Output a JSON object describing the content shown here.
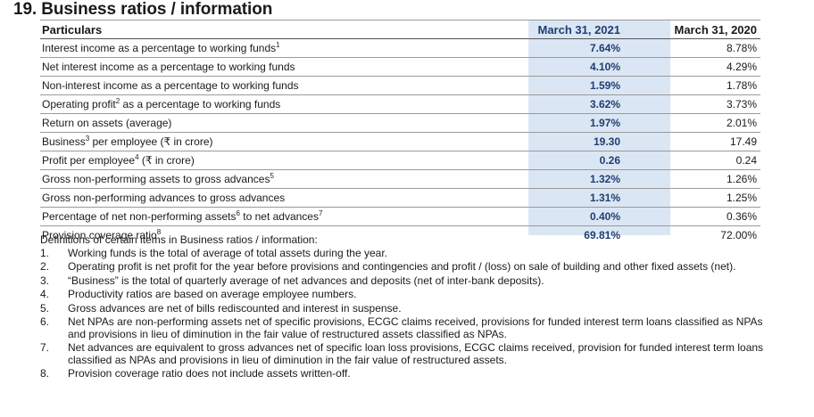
{
  "section_title": "19. Business ratios / information",
  "table": {
    "headers": {
      "particulars": "Particulars",
      "col1": "March 31, 2021",
      "col2": "March 31, 2020"
    },
    "rows": [
      {
        "label": "Interest income as a percentage to working funds",
        "sup": "1",
        "suffix": "",
        "v2021": "7.64%",
        "v2020": "8.78%"
      },
      {
        "label": "Net interest income as a percentage to working funds",
        "sup": "",
        "suffix": "",
        "v2021": "4.10%",
        "v2020": "4.29%"
      },
      {
        "label": "Non-interest income as a percentage to working funds",
        "sup": "",
        "suffix": "",
        "v2021": "1.59%",
        "v2020": "1.78%"
      },
      {
        "label": "Operating profit",
        "sup": "2",
        "suffix": " as a percentage to working funds",
        "v2021": "3.62%",
        "v2020": "3.73%"
      },
      {
        "label": "Return on assets (average)",
        "sup": "",
        "suffix": "",
        "v2021": "1.97%",
        "v2020": "2.01%"
      },
      {
        "label": "Business",
        "sup": "3",
        "suffix": " per employee (₹ in crore)",
        "v2021": "19.30",
        "v2020": "17.49"
      },
      {
        "label": "Profit per employee",
        "sup": "4",
        "suffix": " (₹ in crore)",
        "v2021": "0.26",
        "v2020": "0.24"
      },
      {
        "label": "Gross non-performing assets to gross advances",
        "sup": "5",
        "suffix": "",
        "v2021": "1.32%",
        "v2020": "1.26%"
      },
      {
        "label": "Gross non-performing advances to gross advances",
        "sup": "",
        "suffix": "",
        "v2021": "1.31%",
        "v2020": "1.25%"
      },
      {
        "label": "Percentage of net non-performing assets",
        "sup": "6",
        "suffix": " to net advances",
        "sup2": "7",
        "v2021": "0.40%",
        "v2020": "0.36%"
      },
      {
        "label": "Provision coverage ratio",
        "sup": "8",
        "suffix": "",
        "v2021": "69.81%",
        "v2020": "72.00%"
      }
    ]
  },
  "definitions": {
    "title": "Definitions of certain items in Business ratios / information:",
    "notes": [
      {
        "num": "1.",
        "text": "Working funds is the total of average of total assets during the year."
      },
      {
        "num": "2.",
        "text": "Operating profit is net profit for the year before provisions and contingencies and profit / (loss) on sale of building and other fixed assets (net)."
      },
      {
        "num": "3.",
        "text": "“Business” is the total of quarterly average of net advances and deposits (net of inter-bank deposits)."
      },
      {
        "num": "4.",
        "text": "Productivity ratios are based on average employee numbers."
      },
      {
        "num": "5.",
        "text": "Gross advances are net of bills rediscounted and interest in suspense."
      },
      {
        "num": "6.",
        "text": "Net NPAs are non-performing assets net of specific provisions, ECGC claims received, provisions for funded interest term loans classified as NPAs and provisions in lieu of diminution in the fair value of restructured assets classified as NPAs."
      },
      {
        "num": "7.",
        "text": "Net advances are equivalent to gross advances net of specific loan loss provisions, ECGC claims received, provision for funded interest term loans classified as NPAs and provisions in lieu of diminution in the fair value of restructured assets."
      },
      {
        "num": "8.",
        "text": "Provision coverage ratio does not include assets written-off."
      }
    ]
  }
}
